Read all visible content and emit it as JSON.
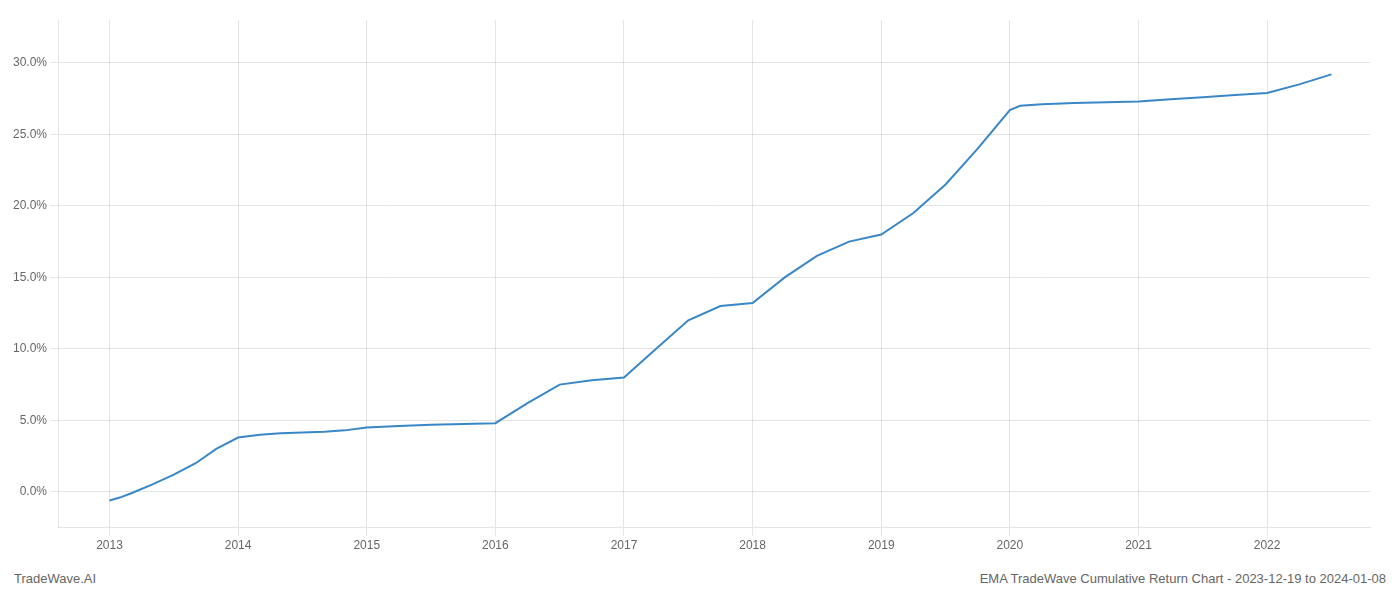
{
  "chart_data": {
    "type": "line",
    "x": [
      2013.0,
      2013.08,
      2013.17,
      2013.33,
      2013.5,
      2013.67,
      2013.83,
      2014.0,
      2014.17,
      2014.33,
      2014.5,
      2014.67,
      2014.83,
      2015.0,
      2015.25,
      2015.5,
      2015.75,
      2016.0,
      2016.25,
      2016.5,
      2016.75,
      2017.0,
      2017.25,
      2017.5,
      2017.75,
      2018.0,
      2018.25,
      2018.5,
      2018.75,
      2019.0,
      2019.25,
      2019.5,
      2019.75,
      2020.0,
      2020.08,
      2020.25,
      2020.5,
      2020.75,
      2021.0,
      2021.25,
      2021.5,
      2021.75,
      2022.0,
      2022.25,
      2022.5
    ],
    "values": [
      -0.6,
      -0.4,
      -0.1,
      0.5,
      1.2,
      2.0,
      3.0,
      3.8,
      4.0,
      4.1,
      4.15,
      4.2,
      4.3,
      4.5,
      4.6,
      4.7,
      4.75,
      4.8,
      6.2,
      7.5,
      7.8,
      8.0,
      10.0,
      12.0,
      13.0,
      13.2,
      15.0,
      16.5,
      17.5,
      18.0,
      19.5,
      21.5,
      24.0,
      26.7,
      27.0,
      27.1,
      27.2,
      27.25,
      27.3,
      27.45,
      27.6,
      27.75,
      27.9,
      28.5,
      29.2
    ],
    "color": "#3a87c8",
    "xlim": [
      2012.6,
      2022.8
    ],
    "ylim": [
      -2.5,
      33.0
    ],
    "xticks": [
      2013,
      2014,
      2015,
      2016,
      2017,
      2018,
      2019,
      2020,
      2021,
      2022
    ],
    "yticks": [
      {
        "value": 0.0,
        "label": "0.0%"
      },
      {
        "value": 5.0,
        "label": "5.0%"
      },
      {
        "value": 10.0,
        "label": "10.0%"
      },
      {
        "value": 15.0,
        "label": "15.0%"
      },
      {
        "value": 20.0,
        "label": "20.0%"
      },
      {
        "value": 25.0,
        "label": "25.0%"
      },
      {
        "value": 30.0,
        "label": "30.0%"
      }
    ],
    "grid": true,
    "annotations": [
      "TradeWave.AI",
      "EMA TradeWave Cumulative Return Chart - 2023-12-19 to 2024-01-08"
    ]
  }
}
